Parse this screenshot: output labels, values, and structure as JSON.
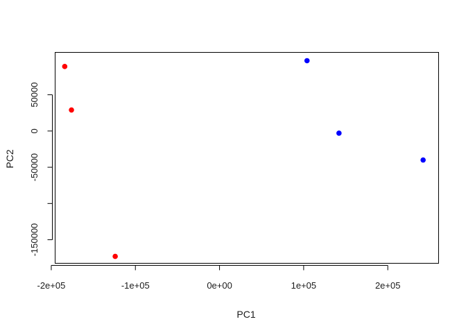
{
  "chart_data": {
    "type": "scatter",
    "title": "",
    "xlabel": "PC1",
    "ylabel": "PC2",
    "xlim": [
      -195000,
      260000
    ],
    "ylim": [
      -182000,
      108000
    ],
    "grid": false,
    "x_ticks": [
      {
        "value": -200000,
        "label": "-2e+05"
      },
      {
        "value": -100000,
        "label": "-1e+05"
      },
      {
        "value": 0,
        "label": "0e+00"
      },
      {
        "value": 100000,
        "label": "1e+05"
      },
      {
        "value": 200000,
        "label": "2e+05"
      }
    ],
    "y_ticks": [
      {
        "value": -150000,
        "label": "-150000"
      },
      {
        "value": -100000,
        "label": ""
      },
      {
        "value": -50000,
        "label": "-50000"
      },
      {
        "value": 0,
        "label": "0"
      },
      {
        "value": 50000,
        "label": "50000"
      }
    ],
    "series": [
      {
        "color": "#ff0000",
        "points": [
          {
            "x": -184000,
            "y": 89000
          },
          {
            "x": -176000,
            "y": 29000
          },
          {
            "x": -124000,
            "y": -173000
          }
        ]
      },
      {
        "color": "#0000ff",
        "points": [
          {
            "x": 104000,
            "y": 97000
          },
          {
            "x": 142000,
            "y": -3000
          },
          {
            "x": 242000,
            "y": -40000
          }
        ]
      }
    ]
  }
}
